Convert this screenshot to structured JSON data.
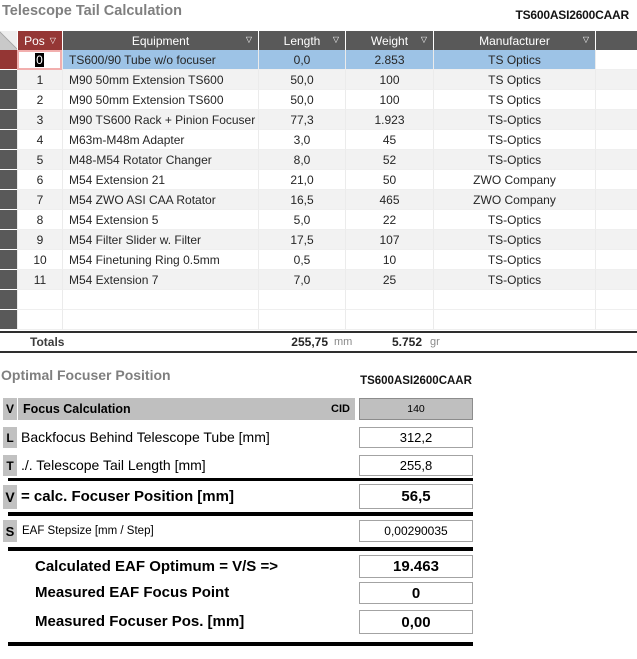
{
  "header": {
    "title": "Telescope Tail Calculation",
    "project_code": "TS600ASI2600CAAR"
  },
  "table": {
    "columns": [
      "Pos",
      "Equipment",
      "Length",
      "Weight",
      "Manufacturer"
    ],
    "rows": [
      {
        "pos": "0",
        "equipment": "TS600/90 Tube w/o focuser",
        "length": "0,0",
        "weight": "2.853",
        "manufacturer": "TS Optics",
        "selected": true
      },
      {
        "pos": "1",
        "equipment": "M90 50mm Extension TS600",
        "length": "50,0",
        "weight": "100",
        "manufacturer": "TS Optics"
      },
      {
        "pos": "2",
        "equipment": "M90 50mm Extension TS600",
        "length": "50,0",
        "weight": "100",
        "manufacturer": "TS Optics"
      },
      {
        "pos": "3",
        "equipment": "M90 TS600 Rack + Pinion Focuser",
        "length": "77,3",
        "weight": "1.923",
        "manufacturer": "TS-Optics"
      },
      {
        "pos": "4",
        "equipment": "M63m-M48m Adapter",
        "length": "3,0",
        "weight": "45",
        "manufacturer": "TS-Optics"
      },
      {
        "pos": "5",
        "equipment": "M48-M54 Rotator Changer",
        "length": "8,0",
        "weight": "52",
        "manufacturer": "TS-Optics"
      },
      {
        "pos": "6",
        "equipment": "M54 Extension 21",
        "length": "21,0",
        "weight": "50",
        "manufacturer": "ZWO Company"
      },
      {
        "pos": "7",
        "equipment": "M54 ZWO ASI CAA Rotator",
        "length": "16,5",
        "weight": "465",
        "manufacturer": "ZWO Company"
      },
      {
        "pos": "8",
        "equipment": "M54 Extension 5",
        "length": "5,0",
        "weight": "22",
        "manufacturer": "TS-Optics"
      },
      {
        "pos": "9",
        "equipment": "M54 Filter Slider w. Filter",
        "length": "17,5",
        "weight": "107",
        "manufacturer": "TS-Optics"
      },
      {
        "pos": "10",
        "equipment": "M54 Finetuning Ring 0.5mm",
        "length": "0,5",
        "weight": "10",
        "manufacturer": "TS-Optics"
      },
      {
        "pos": "11",
        "equipment": "M54 Extension 7",
        "length": "7,0",
        "weight": "25",
        "manufacturer": "TS-Optics"
      }
    ],
    "empty_row_count": 2,
    "totals": {
      "label": "Totals",
      "length": "255,75",
      "length_unit": "mm",
      "weight": "5.752",
      "weight_unit": "gr"
    }
  },
  "focuser": {
    "title": "Optimal Focuser Position",
    "project_code": "TS600ASI2600CAAR",
    "rows": {
      "focus_calc": {
        "prefix": "V",
        "label": "Focus Calculation",
        "cid_label": "CID",
        "value": "140"
      },
      "backfocus": {
        "prefix": "L",
        "label": "Backfocus Behind Telescope Tube [mm]",
        "value": "312,2"
      },
      "tail_length": {
        "prefix": "T",
        "label": "./. Telescope Tail Length [mm]",
        "value": "255,8"
      },
      "focuser_position": {
        "prefix": "V",
        "label": "= calc. Focuser Position [mm]",
        "value": "56,5"
      },
      "eaf_stepsize": {
        "prefix": "S",
        "label": "EAF Stepsize  [mm / Step]",
        "value": "0,00290035"
      },
      "eaf_optimum": {
        "label": "Calculated EAF Optimum = V/S =>",
        "value": "19.463"
      },
      "measured_focus_point": {
        "label": "Measured EAF Focus Point",
        "value": "0"
      },
      "measured_focuser_pos": {
        "label": "Measured Focuser Pos. [mm]",
        "value": "0,00"
      }
    }
  },
  "colors": {
    "header_gray": "#595959",
    "pos_header_red": "#953735",
    "selector_red": "#943634",
    "selected_row_blue": "#9dc3e6",
    "stripe_gray": "#f2f2f2",
    "form_gray": "#bfbfbf",
    "title_gray": "#7f7f7f"
  }
}
